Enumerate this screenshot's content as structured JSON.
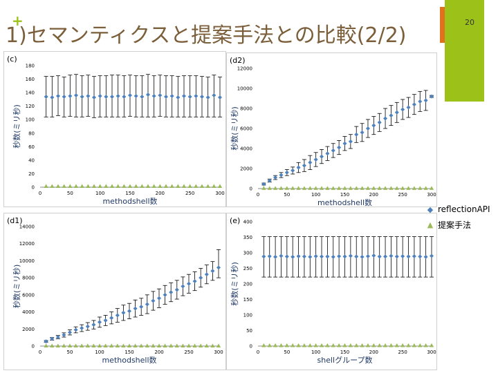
{
  "slide": {
    "title": "1)セマンティクスと提案手法との比較(2/2)",
    "page_number": "20",
    "plus_symbol": "+"
  },
  "colors": {
    "accent_green": "#9cc21a",
    "accent_orange": "#e2711d",
    "title_brown": "#7b5e3a",
    "series_reflection": "#4f81bd",
    "series_proposed": "#9bbb59"
  },
  "legend": {
    "items": [
      {
        "label": "reflectionAPI",
        "marker": "diamond-icon"
      },
      {
        "label": "提案手法",
        "marker": "triangle-icon"
      }
    ]
  },
  "chart_data": [
    {
      "id": "c",
      "panel_label": "(c)",
      "type": "scatter",
      "xlabel": "methodshell数",
      "ylabel": "秒数(ミリ秒)",
      "xlim": [
        0,
        300
      ],
      "ylim": [
        0,
        180
      ],
      "xticks": [
        0,
        50,
        100,
        150,
        200,
        250,
        300
      ],
      "yticks": [
        0,
        20,
        40,
        60,
        80,
        100,
        120,
        140,
        160,
        180
      ],
      "x": [
        10,
        20,
        30,
        40,
        50,
        60,
        70,
        80,
        90,
        100,
        110,
        120,
        130,
        140,
        150,
        160,
        170,
        180,
        190,
        200,
        210,
        220,
        230,
        240,
        250,
        260,
        270,
        280,
        290,
        300
      ],
      "series": [
        {
          "name": "reflectionAPI",
          "values": [
            134,
            133,
            135,
            134,
            135,
            136,
            134,
            135,
            133,
            135,
            134,
            134,
            135,
            134,
            136,
            135,
            134,
            137,
            135,
            136,
            134,
            135,
            133,
            135,
            134,
            135,
            134,
            133,
            136,
            133
          ],
          "err_low": [
            104,
            104,
            106,
            104,
            105,
            104,
            104,
            105,
            103,
            104,
            104,
            104,
            104,
            104,
            105,
            104,
            104,
            104,
            104,
            105,
            104,
            104,
            104,
            104,
            104,
            104,
            104,
            104,
            104,
            104
          ],
          "err_high": [
            164,
            164,
            165,
            163,
            166,
            167,
            165,
            166,
            164,
            165,
            165,
            166,
            166,
            165,
            166,
            165,
            165,
            167,
            165,
            166,
            165,
            165,
            164,
            165,
            165,
            165,
            164,
            163,
            166,
            163
          ]
        },
        {
          "name": "提案手法",
          "values": [
            1,
            1,
            1,
            1,
            1,
            1,
            1,
            1,
            1,
            1,
            1,
            1,
            1,
            1,
            1,
            1,
            1,
            1,
            1,
            1,
            1,
            1,
            1,
            1,
            1,
            1,
            1,
            1,
            1,
            1
          ]
        }
      ]
    },
    {
      "id": "d2",
      "panel_label": "(d2)",
      "type": "scatter",
      "xlabel": "methodshell数",
      "ylabel": "秒数(ミリ秒)",
      "xlim": [
        0,
        300
      ],
      "ylim": [
        0,
        12000
      ],
      "xticks": [
        0,
        50,
        100,
        150,
        200,
        250,
        300
      ],
      "yticks": [
        0,
        2000,
        4000,
        6000,
        8000,
        10000,
        12000
      ],
      "x": [
        10,
        20,
        30,
        40,
        50,
        60,
        70,
        80,
        90,
        100,
        110,
        120,
        130,
        140,
        150,
        160,
        170,
        180,
        190,
        200,
        210,
        220,
        230,
        240,
        250,
        260,
        270,
        280,
        290,
        300
      ],
      "series": [
        {
          "name": "reflectionAPI",
          "values": [
            450,
            800,
            1100,
            1350,
            1600,
            1800,
            2100,
            2300,
            2600,
            2900,
            3200,
            3500,
            3800,
            4100,
            4500,
            4700,
            5400,
            5600,
            6000,
            6300,
            6600,
            7000,
            7300,
            7600,
            7900,
            8100,
            8400,
            8700,
            8800,
            9200
          ],
          "err_low": [
            350,
            650,
            900,
            1100,
            1300,
            1450,
            1600,
            1700,
            1900,
            2200,
            2500,
            2800,
            3100,
            3400,
            3800,
            4000,
            4600,
            4700,
            5100,
            5400,
            5700,
            6000,
            6300,
            6600,
            6900,
            7100,
            7400,
            7700,
            7800,
            9100
          ],
          "err_high": [
            550,
            950,
            1300,
            1600,
            1900,
            2150,
            2600,
            2900,
            3300,
            3600,
            3900,
            4200,
            4500,
            4800,
            5200,
            5400,
            6200,
            6500,
            6900,
            7200,
            7500,
            8000,
            8300,
            8600,
            8900,
            9100,
            9400,
            9700,
            9800,
            9300
          ]
        },
        {
          "name": "提案手法",
          "values": [
            5,
            5,
            5,
            5,
            5,
            5,
            5,
            5,
            5,
            5,
            5,
            5,
            5,
            5,
            5,
            5,
            5,
            5,
            5,
            5,
            5,
            5,
            5,
            5,
            5,
            5,
            5,
            5,
            5,
            5
          ]
        }
      ]
    },
    {
      "id": "d1",
      "panel_label": "(d1)",
      "type": "scatter",
      "xlabel": "methodshell数",
      "ylabel": "秒数(ミリ秒)",
      "xlim": [
        0,
        300
      ],
      "ylim": [
        0,
        14000
      ],
      "xticks": [
        0,
        50,
        100,
        150,
        200,
        250,
        300
      ],
      "yticks": [
        0,
        2000,
        4000,
        6000,
        8000,
        10000,
        12000,
        14000
      ],
      "x": [
        10,
        20,
        30,
        40,
        50,
        60,
        70,
        80,
        90,
        100,
        110,
        120,
        130,
        140,
        150,
        160,
        170,
        180,
        190,
        200,
        210,
        220,
        230,
        240,
        250,
        260,
        270,
        280,
        290,
        300
      ],
      "series": [
        {
          "name": "reflectionAPI",
          "values": [
            550,
            850,
            1050,
            1300,
            1600,
            1900,
            2100,
            2300,
            2500,
            2800,
            3000,
            3300,
            3600,
            3900,
            4100,
            4400,
            4600,
            4900,
            5300,
            5600,
            6000,
            6300,
            6600,
            7000,
            7300,
            7600,
            8000,
            8400,
            8800,
            9200
          ],
          "err_low": [
            450,
            700,
            850,
            1050,
            1300,
            1550,
            1700,
            1850,
            2000,
            2200,
            2400,
            2600,
            2800,
            3000,
            3200,
            3400,
            3600,
            3800,
            4200,
            4500,
            4900,
            5200,
            5500,
            5900,
            6200,
            6500,
            6900,
            7300,
            7700,
            8000
          ],
          "err_high": [
            650,
            1000,
            1250,
            1550,
            1900,
            2250,
            2500,
            2750,
            3000,
            3400,
            3600,
            4000,
            4400,
            4800,
            5000,
            5400,
            5600,
            6000,
            6400,
            6700,
            7100,
            7400,
            7700,
            8100,
            8400,
            8700,
            9100,
            9500,
            9900,
            11300
          ]
        },
        {
          "name": "提案手法",
          "values": [
            5,
            5,
            5,
            5,
            5,
            5,
            5,
            5,
            5,
            5,
            5,
            5,
            5,
            5,
            5,
            5,
            5,
            5,
            5,
            5,
            5,
            5,
            5,
            5,
            5,
            5,
            5,
            5,
            5,
            5
          ]
        }
      ]
    },
    {
      "id": "e",
      "panel_label": "(e)",
      "type": "scatter",
      "xlabel": "shellグループ数",
      "ylabel": "秒数(ミリ秒)",
      "xlim": [
        0,
        300
      ],
      "ylim": [
        0,
        400
      ],
      "xticks": [
        0,
        50,
        100,
        150,
        200,
        250,
        300
      ],
      "yticks": [
        0,
        50,
        100,
        150,
        200,
        250,
        300,
        350,
        400
      ],
      "x": [
        10,
        20,
        30,
        40,
        50,
        60,
        70,
        80,
        90,
        100,
        110,
        120,
        130,
        140,
        150,
        160,
        170,
        180,
        190,
        200,
        210,
        220,
        230,
        240,
        250,
        260,
        270,
        280,
        290,
        300
      ],
      "series": [
        {
          "name": "reflectionAPI",
          "values": [
            288,
            289,
            287,
            290,
            288,
            287,
            289,
            288,
            287,
            289,
            288,
            288,
            287,
            289,
            288,
            290,
            288,
            287,
            289,
            291,
            288,
            288,
            290,
            288,
            289,
            288,
            289,
            288,
            287,
            290
          ],
          "err_low": [
            222,
            222,
            222,
            222,
            222,
            222,
            222,
            222,
            222,
            222,
            222,
            222,
            222,
            222,
            222,
            222,
            222,
            222,
            222,
            222,
            222,
            222,
            222,
            222,
            222,
            222,
            222,
            222,
            222,
            222
          ],
          "err_high": [
            352,
            352,
            352,
            352,
            352,
            352,
            352,
            352,
            352,
            352,
            352,
            352,
            352,
            352,
            352,
            352,
            352,
            352,
            352,
            352,
            352,
            352,
            352,
            352,
            352,
            352,
            352,
            352,
            352,
            352
          ]
        },
        {
          "name": "提案手法",
          "values": [
            1,
            1,
            1,
            1,
            1,
            1,
            1,
            1,
            1,
            1,
            1,
            1,
            1,
            1,
            1,
            1,
            1,
            1,
            1,
            1,
            1,
            1,
            1,
            1,
            1,
            1,
            1,
            1,
            1,
            1
          ]
        }
      ]
    }
  ]
}
